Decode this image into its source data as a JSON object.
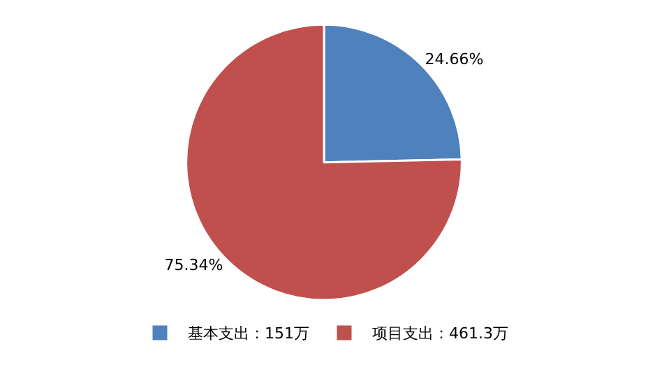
{
  "chart_data": {
    "type": "pie",
    "categories": [
      "基本支出：151万",
      "项目支出：461.3万"
    ],
    "values": [
      24.66,
      75.34
    ],
    "colors": [
      "#4f81bd",
      "#c0504d"
    ],
    "value_labels": [
      "24.66%",
      "75.34%"
    ],
    "legend": "bottom"
  }
}
